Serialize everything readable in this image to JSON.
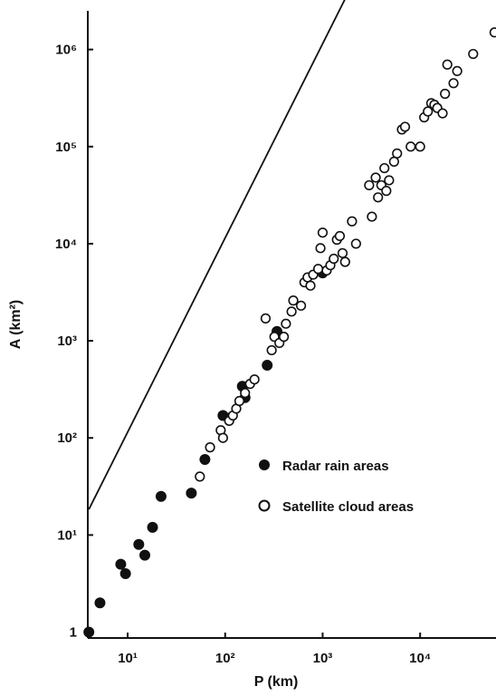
{
  "chart_data": {
    "type": "scatter",
    "xlabel": "P (km)",
    "ylabel": "A (km²)",
    "x_scale": "log",
    "y_scale": "log",
    "xlim": [
      3.9,
      60000
    ],
    "ylim": [
      0.87,
      2500000
    ],
    "grid": false,
    "legend_position": "right-middle",
    "x_ticks": [
      {
        "value": 10,
        "label": "10¹"
      },
      {
        "value": 100,
        "label": "10²"
      },
      {
        "value": 1000,
        "label": "10³"
      },
      {
        "value": 10000,
        "label": "10⁴"
      }
    ],
    "y_ticks": [
      {
        "value": 1,
        "label": "1"
      },
      {
        "value": 10,
        "label": "10¹"
      },
      {
        "value": 100,
        "label": "10²"
      },
      {
        "value": 1000,
        "label": "10³"
      },
      {
        "value": 10000,
        "label": "10⁴"
      },
      {
        "value": 100000,
        "label": "10⁵"
      },
      {
        "value": 1000000,
        "label": "10⁶"
      }
    ],
    "fit_line": {
      "slope": 2.0,
      "intercept": 0.06,
      "x_range": [
        4,
        60000
      ]
    },
    "series": [
      {
        "name": "Radar rain areas",
        "marker": "filled",
        "points": [
          [
            4,
            1
          ],
          [
            5.2,
            2
          ],
          [
            8.5,
            5
          ],
          [
            9.5,
            4
          ],
          [
            13,
            8
          ],
          [
            15,
            6.2
          ],
          [
            18,
            12
          ],
          [
            22,
            25
          ],
          [
            45,
            27
          ],
          [
            62,
            60
          ],
          [
            95,
            170
          ],
          [
            110,
            160
          ],
          [
            150,
            340
          ],
          [
            160,
            260
          ],
          [
            270,
            560
          ],
          [
            340,
            1250
          ],
          [
            1000,
            5000
          ]
        ]
      },
      {
        "name": "Satellite cloud areas",
        "marker": "open",
        "points": [
          [
            55,
            40
          ],
          [
            70,
            80
          ],
          [
            90,
            120
          ],
          [
            95,
            100
          ],
          [
            110,
            150
          ],
          [
            120,
            170
          ],
          [
            130,
            200
          ],
          [
            140,
            240
          ],
          [
            160,
            290
          ],
          [
            180,
            360
          ],
          [
            200,
            400
          ],
          [
            260,
            1700
          ],
          [
            300,
            800
          ],
          [
            320,
            1100
          ],
          [
            360,
            950
          ],
          [
            400,
            1100
          ],
          [
            420,
            1500
          ],
          [
            480,
            2000
          ],
          [
            500,
            2600
          ],
          [
            600,
            2300
          ],
          [
            650,
            4000
          ],
          [
            700,
            4500
          ],
          [
            750,
            3700
          ],
          [
            800,
            4800
          ],
          [
            900,
            5500
          ],
          [
            950,
            9000
          ],
          [
            1000,
            13000
          ],
          [
            1100,
            5300
          ],
          [
            1200,
            6000
          ],
          [
            1300,
            7000
          ],
          [
            1400,
            11000
          ],
          [
            1500,
            12000
          ],
          [
            1600,
            8000
          ],
          [
            1700,
            6500
          ],
          [
            2000,
            17000
          ],
          [
            2200,
            10000
          ],
          [
            3000,
            40000
          ],
          [
            3200,
            19000
          ],
          [
            3500,
            48000
          ],
          [
            3700,
            30000
          ],
          [
            4000,
            40000
          ],
          [
            4300,
            60000
          ],
          [
            4500,
            35000
          ],
          [
            4800,
            45000
          ],
          [
            5400,
            70000
          ],
          [
            5800,
            85000
          ],
          [
            6500,
            150000
          ],
          [
            7000,
            160000
          ],
          [
            8000,
            100000
          ],
          [
            10000,
            100000
          ],
          [
            11000,
            200000
          ],
          [
            12000,
            230000
          ],
          [
            13000,
            280000
          ],
          [
            14000,
            270000
          ],
          [
            15000,
            250000
          ],
          [
            17000,
            220000
          ],
          [
            18000,
            350000
          ],
          [
            19000,
            700000
          ],
          [
            22000,
            450000
          ],
          [
            24000,
            600000
          ],
          [
            35000,
            900000
          ],
          [
            58000,
            1500000
          ]
        ]
      }
    ]
  }
}
